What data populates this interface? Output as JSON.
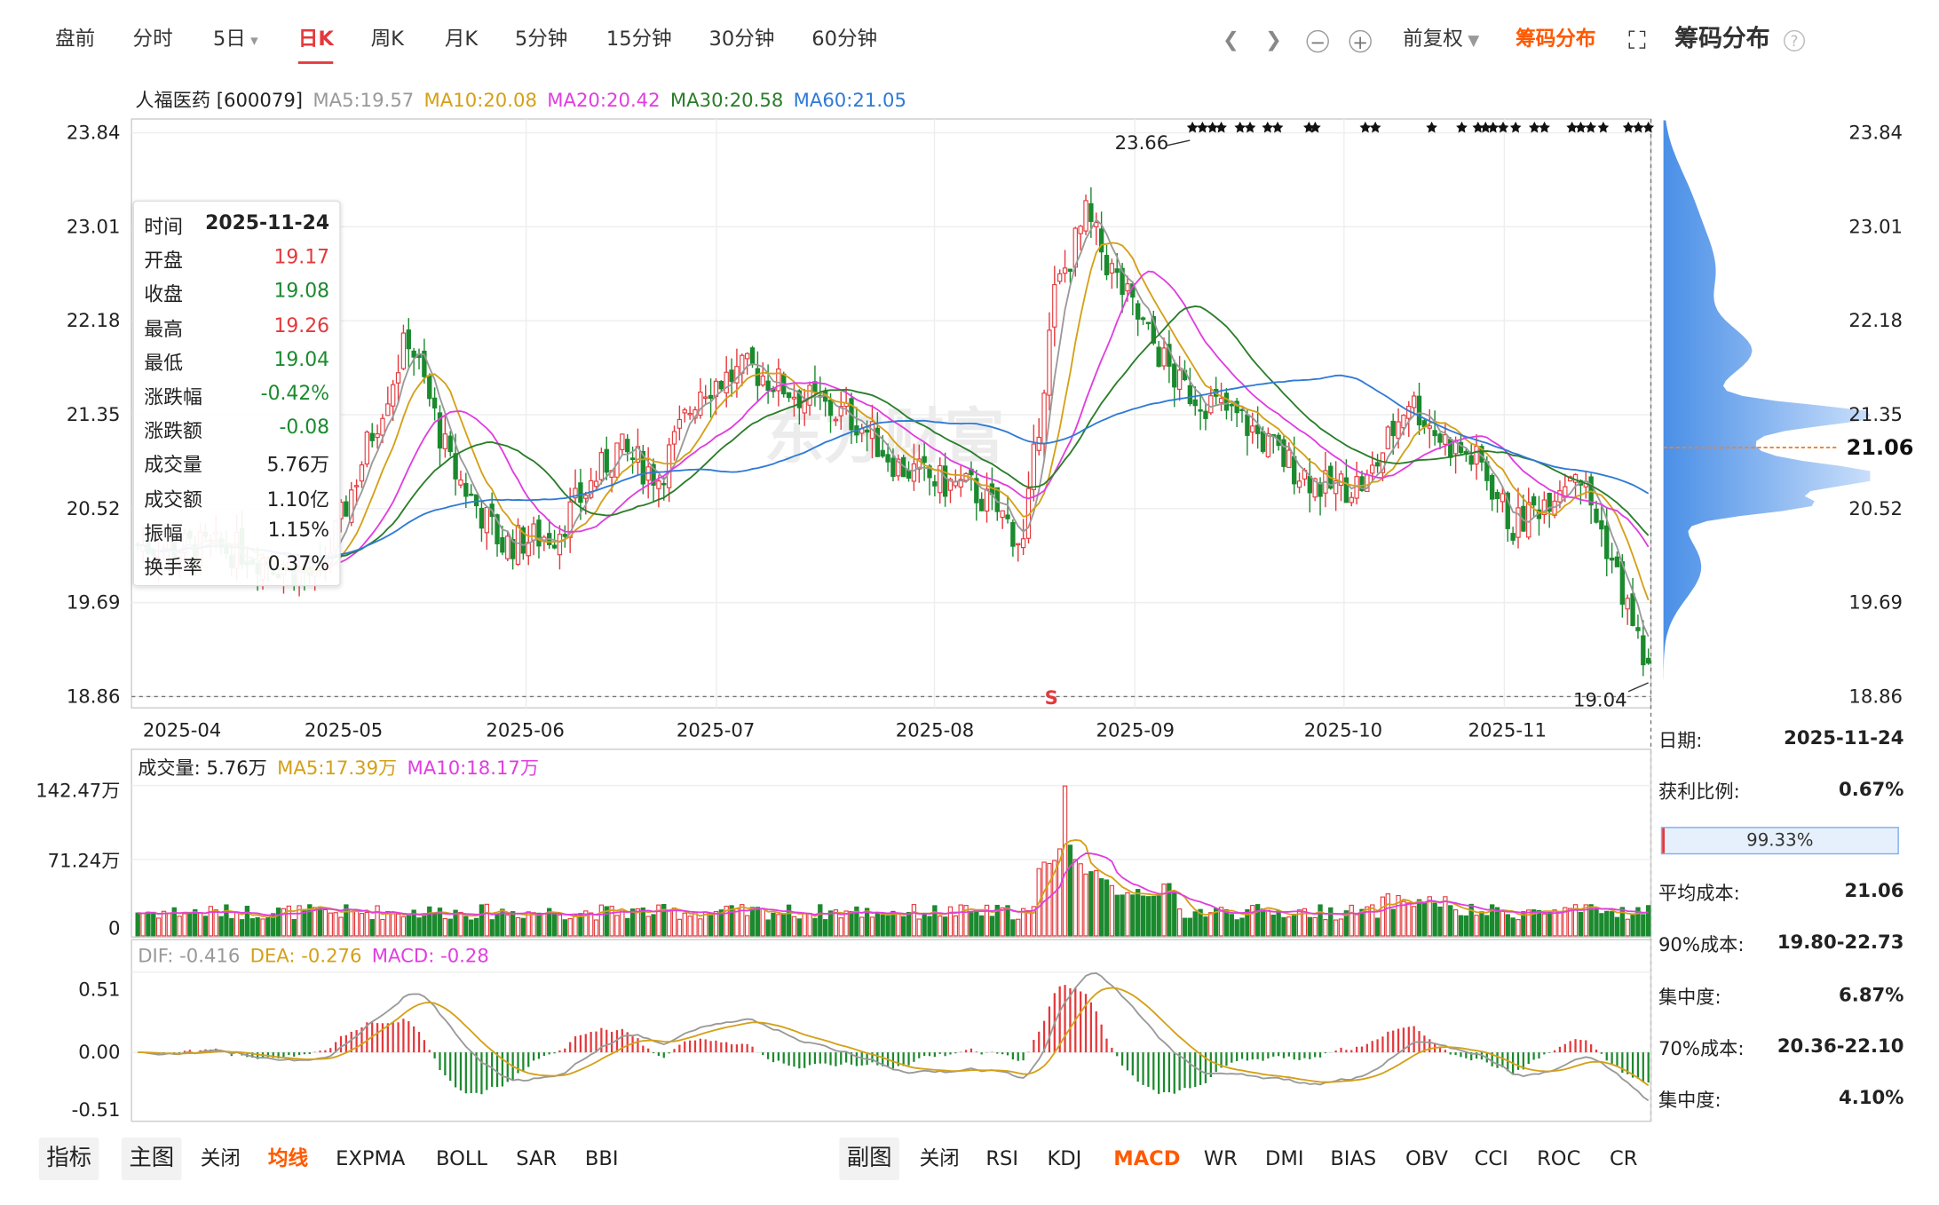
{
  "period_tabs": [
    "盘前",
    "分时",
    "5日",
    "日K",
    "周K",
    "月K",
    "5分钟",
    "15分钟",
    "30分钟",
    "60分钟"
  ],
  "active_tab": "日K",
  "five_day_arrow": "▾",
  "adjust": "前复权",
  "chip_link": "筹码分布",
  "chip_title": "筹码分布",
  "stock": "人福医药 [600079]",
  "ma_legend": {
    "ma5": "MA5:19.57",
    "ma10": "MA10:20.08",
    "ma20": "MA20:20.42",
    "ma30": "MA30:20.58",
    "ma60": "MA60:21.05"
  },
  "price_axis": [
    "23.84",
    "23.01",
    "22.18",
    "21.35",
    "20.52",
    "19.69",
    "18.86"
  ],
  "price_axis_right": [
    "23.84",
    "23.01",
    "22.18",
    "21.35",
    "20.52",
    "19.69",
    "18.86"
  ],
  "current_price": "21.06",
  "x_axis": [
    "2025-04",
    "2025-05",
    "2025-06",
    "2025-07",
    "2025-08",
    "2025-09",
    "2025-10",
    "2025-11"
  ],
  "high_label": "23.66",
  "low_label": "19.04",
  "sell_mark": "S",
  "watermark": "东方财富",
  "tooltip": [
    {
      "k": "时间",
      "v": "2025-11-24",
      "c": "#222"
    },
    {
      "k": "开盘",
      "v": "19.17",
      "c": "#e4393c"
    },
    {
      "k": "收盘",
      "v": "19.08",
      "c": "#1b8a2e"
    },
    {
      "k": "最高",
      "v": "19.26",
      "c": "#e4393c"
    },
    {
      "k": "最低",
      "v": "19.04",
      "c": "#1b8a2e"
    },
    {
      "k": "涨跌幅",
      "v": "-0.42%",
      "c": "#1b8a2e"
    },
    {
      "k": "涨跌额",
      "v": "-0.08",
      "c": "#1b8a2e"
    },
    {
      "k": "成交量",
      "v": "5.76万",
      "c": "#222"
    },
    {
      "k": "成交额",
      "v": "1.10亿",
      "c": "#222"
    },
    {
      "k": "振幅",
      "v": "1.15%",
      "c": "#222"
    },
    {
      "k": "换手率",
      "v": "0.37%",
      "c": "#222"
    }
  ],
  "volume_legend": {
    "vol": "成交量: 5.76万",
    "ma5": "MA5:17.39万",
    "ma10": "MA10:18.17万"
  },
  "volume_axis": [
    "142.47万",
    "71.24万",
    "0"
  ],
  "macd_legend": {
    "dif": "DIF: -0.416",
    "dea": "DEA: -0.276",
    "macd": "MACD: -0.28"
  },
  "macd_axis": [
    "0.51",
    "0.00",
    "-0.51"
  ],
  "chip_stats": [
    {
      "k": "日期:",
      "v": "2025-11-24"
    },
    {
      "k": "获利比例:",
      "v": "0.67%"
    },
    {
      "k": "平均成本:",
      "v": "21.06"
    },
    {
      "k": "90%成本:",
      "v": "19.80-22.73"
    },
    {
      "k": "集中度:",
      "v": "6.87%"
    },
    {
      "k": "70%成本:",
      "v": "20.36-22.10"
    },
    {
      "k": "集中度:",
      "v": "4.10%"
    }
  ],
  "profit_bar": "99.33%",
  "bottom_left": [
    "指标",
    "主图",
    "关闭",
    "均线",
    "EXPMA",
    "BOLL",
    "SAR",
    "BBI"
  ],
  "bottom_right": [
    "副图",
    "关闭",
    "RSI",
    "KDJ",
    "MACD",
    "WR",
    "DMI",
    "BIAS",
    "OBV",
    "CCI",
    "ROC",
    "CR"
  ],
  "colors": {
    "up": "#e4393c",
    "down": "#1b8a2e",
    "ma5": "#999999",
    "ma10": "#d4a017",
    "ma20": "#e03ee0",
    "ma30": "#2a7d2a",
    "ma60": "#2f7ad6",
    "accent": "#ff5a00"
  }
}
